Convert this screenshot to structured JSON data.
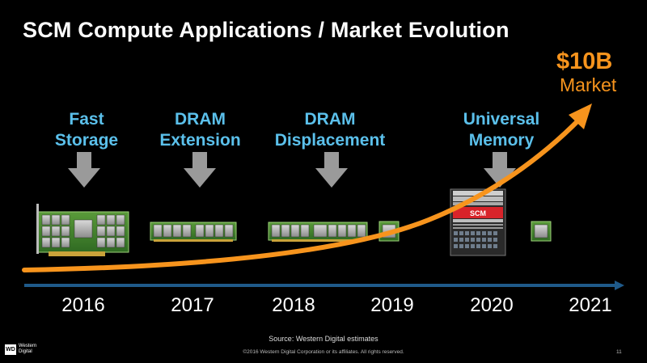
{
  "title": "SCM Compute Applications / Market Evolution",
  "market": {
    "value": "$10B",
    "label": "Market"
  },
  "phases": [
    {
      "line1": "Fast",
      "line2": "Storage"
    },
    {
      "line1": "DRAM",
      "line2": "Extension"
    },
    {
      "line1": "DRAM",
      "line2": "Displacement"
    },
    {
      "line1": "Universal",
      "line2": "Memory"
    }
  ],
  "server_label": "SCM",
  "years": [
    "2016",
    "2017",
    "2018",
    "2019",
    "2020",
    "2021"
  ],
  "source": "Source: Western Digital estimates",
  "copyright": "©2016 Western Digital Corporation or its affiliates. All rights reserved.",
  "page_number": "11",
  "logo": {
    "mark": "WD",
    "line1": "Western",
    "line2": "Digital"
  },
  "colors": {
    "accent_orange": "#f7941d",
    "phase_blue": "#5bc0eb",
    "timeline_blue": "#1f5a8a",
    "chip_green": "#3a7a2a",
    "arrow_gray": "#9a9a9a"
  },
  "icons": [
    "down-arrow-icon",
    "pcie-card-icon",
    "dimm-module-icon",
    "memory-chip-icon",
    "server-rack-icon",
    "growth-curve-arrow-icon",
    "timeline-arrow-icon"
  ]
}
